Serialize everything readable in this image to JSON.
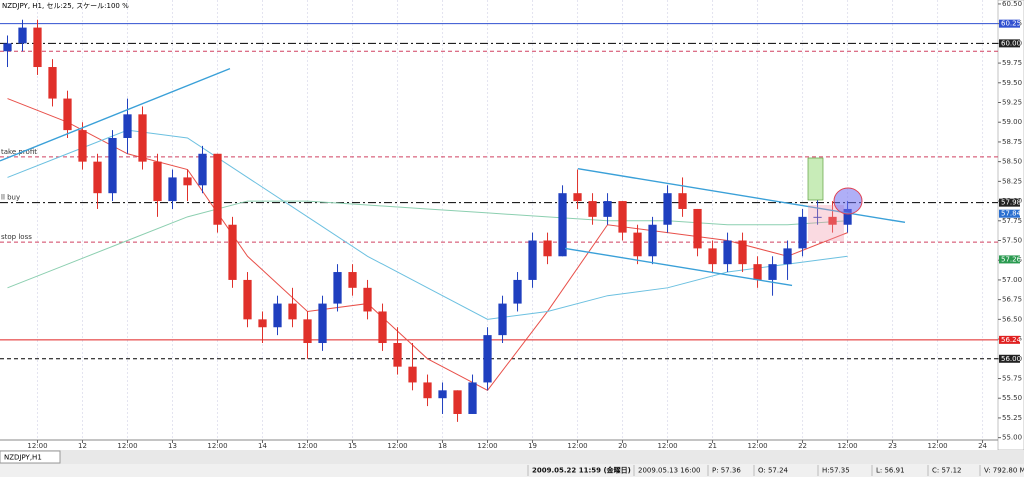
{
  "chart_data": {
    "type": "candlestick",
    "title": "NZDJPY, H1, セル:25, スケール:100 %",
    "ylim": [
      54.97,
      60.55
    ],
    "xlim": [
      -0.5,
      66.03
    ],
    "yticks": [
      {
        "value": 55,
        "label": "55.00"
      },
      {
        "value": 55.25,
        "label": "55.25"
      },
      {
        "value": 55.5,
        "label": "55.50"
      },
      {
        "value": 55.75,
        "label": "55.75"
      },
      {
        "value": 56,
        "label": "56.00"
      },
      {
        "value": 56.25,
        "label": "56.25"
      },
      {
        "value": 56.5,
        "label": "56.50"
      },
      {
        "value": 56.75,
        "label": "56.75"
      },
      {
        "value": 57,
        "label": "57.00"
      },
      {
        "value": 57.25,
        "label": "57.25"
      },
      {
        "value": 57.5,
        "label": "57.50"
      },
      {
        "value": 57.75,
        "label": "57.75"
      },
      {
        "value": 58,
        "label": "58.00"
      },
      {
        "value": 58.25,
        "label": "58.25"
      },
      {
        "value": 58.5,
        "label": "58.50"
      },
      {
        "value": 58.75,
        "label": "58.75"
      },
      {
        "value": 59,
        "label": "59.00"
      },
      {
        "value": 59.25,
        "label": "59.25"
      },
      {
        "value": 59.5,
        "label": "59.50"
      },
      {
        "value": 59.75,
        "label": "59.75"
      },
      {
        "value": 60,
        "label": "60.00"
      },
      {
        "value": 60.25,
        "label": "60.25"
      },
      {
        "value": 60.5,
        "label": "60.50"
      }
    ],
    "xticks": [
      {
        "value": 2,
        "label": "12:00"
      },
      {
        "value": 5,
        "label": "12"
      },
      {
        "value": 8,
        "label": "12:00"
      },
      {
        "value": 11,
        "label": "13"
      },
      {
        "value": 14,
        "label": "12:00"
      },
      {
        "value": 17,
        "label": "14"
      },
      {
        "value": 20,
        "label": "12:00"
      },
      {
        "value": 23,
        "label": "15"
      },
      {
        "value": 26,
        "label": "12:00"
      },
      {
        "value": 29,
        "label": "18"
      },
      {
        "value": 32,
        "label": "12:00"
      },
      {
        "value": 35,
        "label": "19"
      },
      {
        "value": 38,
        "label": "12:00"
      },
      {
        "value": 41,
        "label": "20"
      },
      {
        "value": 44,
        "label": "12:00"
      },
      {
        "value": 47,
        "label": "21"
      },
      {
        "value": 50,
        "label": "12:00"
      },
      {
        "value": 53,
        "label": "22"
      },
      {
        "value": 56,
        "label": "12:00"
      },
      {
        "value": 59,
        "label": "23"
      },
      {
        "value": 62,
        "label": "12:00"
      },
      {
        "value": 65,
        "label": "24"
      }
    ],
    "up_color": "#1f3fbf",
    "down_color": "#e0302a",
    "open": [
      59.9,
      60.0,
      60.2,
      59.7,
      59.3,
      58.9,
      58.5,
      58.1,
      58.8,
      59.1,
      58.5,
      58.0,
      58.3,
      58.2,
      58.6,
      57.7,
      57.0,
      56.5,
      56.4,
      56.7,
      56.5,
      56.2,
      56.7,
      57.1,
      56.9,
      56.6,
      56.2,
      55.9,
      55.7,
      55.5,
      55.6,
      55.3,
      55.7,
      56.3,
      56.7,
      57.0,
      57.5,
      57.3,
      58.1,
      58.0,
      57.8,
      58.0,
      57.6,
      57.3,
      57.7,
      58.1,
      57.9,
      57.4,
      57.2,
      57.5,
      57.2,
      57.0,
      57.2,
      57.4,
      57.8,
      57.8,
      57.7
    ],
    "high": [
      60.1,
      60.3,
      60.3,
      59.8,
      59.4,
      59.0,
      58.6,
      58.9,
      59.3,
      59.2,
      58.6,
      58.4,
      58.4,
      58.7,
      58.6,
      57.8,
      57.1,
      56.6,
      56.8,
      56.9,
      56.6,
      56.8,
      57.2,
      57.2,
      57.0,
      56.7,
      56.4,
      56.2,
      55.8,
      55.7,
      55.6,
      55.8,
      56.4,
      56.8,
      57.1,
      57.6,
      57.6,
      58.2,
      58.4,
      58.1,
      58.1,
      58.0,
      57.7,
      57.8,
      58.2,
      58.3,
      57.9,
      57.5,
      57.6,
      57.6,
      57.3,
      57.3,
      57.5,
      57.9,
      58.1,
      58.0,
      58.0
    ],
    "low": [
      59.7,
      59.9,
      59.6,
      59.2,
      58.8,
      58.4,
      57.9,
      58.0,
      58.6,
      58.4,
      57.8,
      57.9,
      58.0,
      58.1,
      57.6,
      56.9,
      56.4,
      56.2,
      56.3,
      56.4,
      56.0,
      56.1,
      56.6,
      56.8,
      56.5,
      56.1,
      55.8,
      55.6,
      55.4,
      55.3,
      55.2,
      55.3,
      55.6,
      56.2,
      56.6,
      56.9,
      57.2,
      57.3,
      57.9,
      57.7,
      57.7,
      57.5,
      57.2,
      57.2,
      57.6,
      57.8,
      57.3,
      57.1,
      57.1,
      57.1,
      56.9,
      56.8,
      57.0,
      57.3,
      57.7,
      57.6,
      57.6
    ],
    "close": [
      60.0,
      60.2,
      59.7,
      59.3,
      58.9,
      58.5,
      58.1,
      58.8,
      59.1,
      58.5,
      58.0,
      58.3,
      58.2,
      58.6,
      57.7,
      57.0,
      56.5,
      56.4,
      56.7,
      56.5,
      56.2,
      56.7,
      57.1,
      56.9,
      56.6,
      56.2,
      55.9,
      55.7,
      55.5,
      55.6,
      55.3,
      55.7,
      56.3,
      56.7,
      57.0,
      57.5,
      57.3,
      58.1,
      58.0,
      57.8,
      58.0,
      57.6,
      57.3,
      57.7,
      58.1,
      57.9,
      57.4,
      57.2,
      57.5,
      57.2,
      57.0,
      57.2,
      57.4,
      57.8,
      57.8,
      57.7,
      57.9
    ],
    "averages": [
      {
        "color": "#e8504a",
        "x": [
          0,
          4,
          8,
          12,
          16,
          20,
          24,
          28,
          32,
          36,
          40,
          44,
          48,
          52,
          56
        ],
        "values": [
          59.3,
          59.0,
          58.6,
          58.4,
          57.3,
          56.6,
          56.7,
          56.0,
          55.6,
          56.6,
          57.7,
          57.6,
          57.5,
          57.3,
          57.6
        ]
      },
      {
        "color": "#6cc0e0",
        "x": [
          0,
          4,
          8,
          12,
          16,
          20,
          24,
          28,
          32,
          36,
          40,
          44,
          48,
          52,
          56
        ],
        "values": [
          58.3,
          58.6,
          58.9,
          58.8,
          58.3,
          57.8,
          57.3,
          56.9,
          56.5,
          56.6,
          56.8,
          56.9,
          57.1,
          57.2,
          57.3
        ]
      },
      {
        "color": "#8ccfb0",
        "x": [
          0,
          4,
          8,
          12,
          16,
          20,
          24,
          28,
          32,
          36,
          40,
          44,
          48,
          52,
          56
        ],
        "values": [
          56.9,
          57.2,
          57.5,
          57.8,
          58.0,
          58.0,
          57.95,
          57.9,
          57.85,
          57.8,
          57.75,
          57.75,
          57.7,
          57.7,
          57.75
        ]
      }
    ],
    "trendlines": [
      {
        "x": [
          -0.5,
          14.83
        ],
        "values": [
          58.51,
          59.68
        ]
      },
      {
        "x": [
          38.03,
          59.83
        ],
        "values": [
          58.41,
          57.73
        ]
      },
      {
        "x": [
          37.17,
          52.3
        ],
        "values": [
          57.4,
          56.93
        ]
      }
    ],
    "levels": [
      {
        "value": 60.25,
        "color": "#3050d0",
        "dash": "none"
      },
      {
        "value": 60.0,
        "color": "#000",
        "dash": "8 3 2 3"
      },
      {
        "value": 59.9,
        "color": "#d04060",
        "dash": "4 3"
      },
      {
        "value": 58.56,
        "color": "#d04060",
        "dash": "4 3",
        "label": "take profit"
      },
      {
        "value": 57.98,
        "color": "#000",
        "dash": "8 3 2 3",
        "label": "ll buy"
      },
      {
        "value": 57.48,
        "color": "#d04060",
        "dash": "4 3",
        "label": "stop loss"
      },
      {
        "value": 56.24,
        "color": "#e02020",
        "dash": "none"
      },
      {
        "value": 56.0,
        "color": "#000",
        "dash": "4 3"
      }
    ],
    "price_tags": [
      {
        "value": 60.25,
        "label": "60.25",
        "color": "#3050d0"
      },
      {
        "value": 60.0,
        "label": "60.00",
        "color": "#222"
      },
      {
        "value": 57.98,
        "label": "57.98",
        "color": "#222"
      },
      {
        "value": 57.84,
        "label": "57.84",
        "color": "#2a6fd0"
      },
      {
        "value": 57.26,
        "label": "57.26",
        "color": "#2a9a50"
      },
      {
        "value": 56.24,
        "label": "56.24",
        "color": "#e02020"
      },
      {
        "value": 56.0,
        "label": "56.00",
        "color": "#222"
      }
    ],
    "tab": "NZDJPY,H1",
    "status": [
      "2009.05.22 11:59 (金曜日)",
      "2009.05.13 16:00",
      "P: 57.36",
      "O: 57.24",
      "H:57.35",
      "L: 56.91",
      "C: 57.12",
      "V: 792.80 M"
    ]
  }
}
